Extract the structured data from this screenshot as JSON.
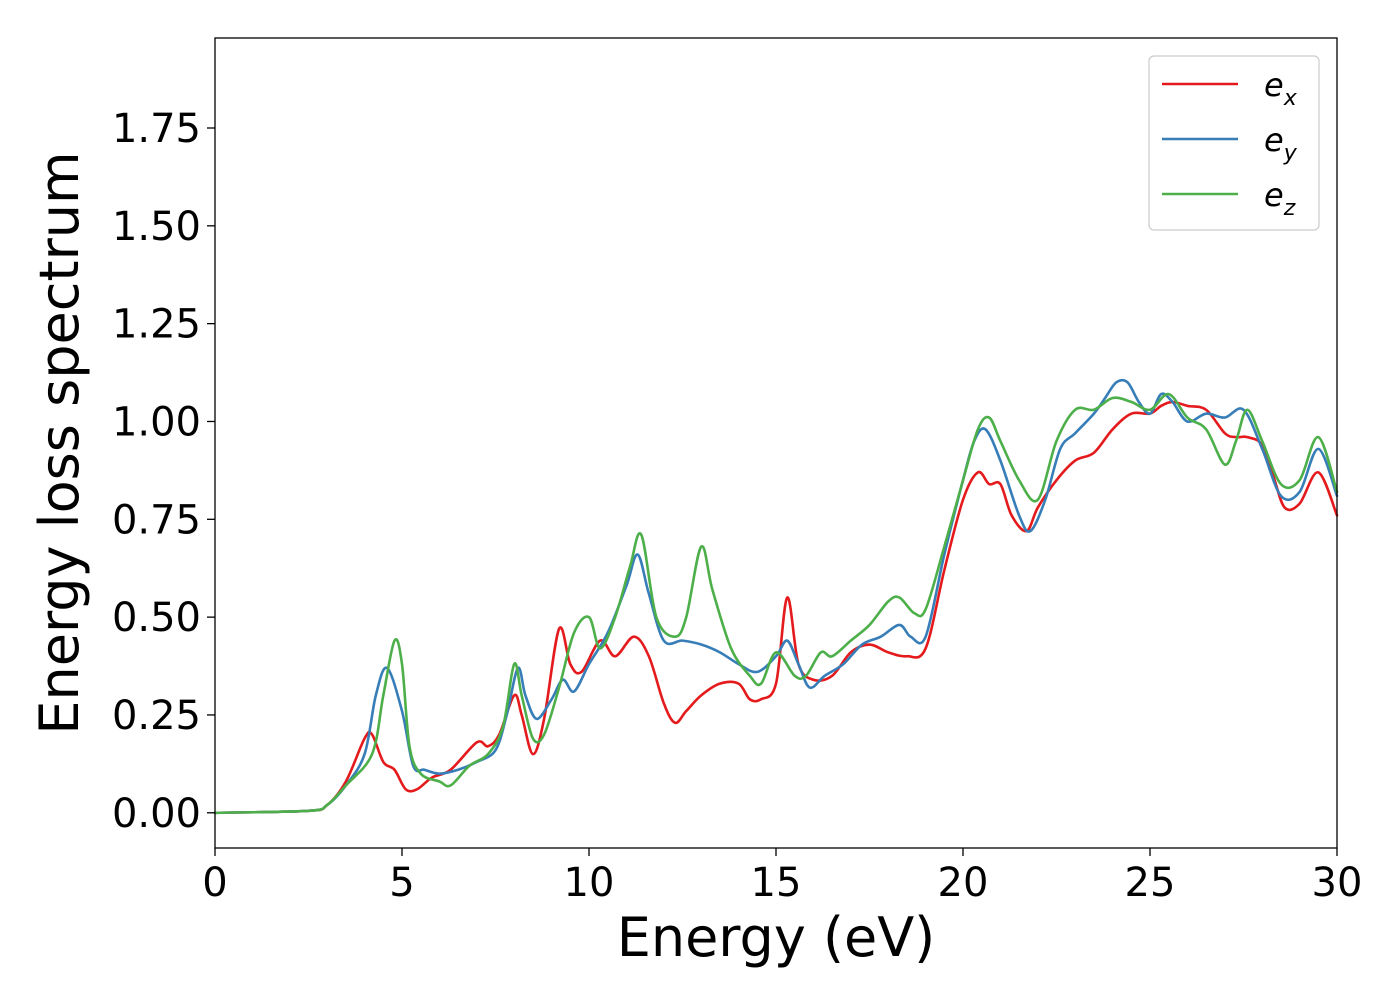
{
  "chart_data": {
    "type": "line",
    "xlabel": "Energy (eV)",
    "ylabel": "Energy loss spectrum",
    "xlim": [
      0,
      30
    ],
    "ylim": [
      -0.09,
      1.98
    ],
    "xticks": [
      "0",
      "5",
      "10",
      "15",
      "20",
      "25",
      "30"
    ],
    "yticks": [
      "0.00",
      "0.25",
      "0.50",
      "0.75",
      "1.00",
      "1.25",
      "1.50",
      "1.75"
    ],
    "grid": false,
    "legend_position": "top-right",
    "series": [
      {
        "name": "e_x",
        "label_main": "e",
        "label_sub": "x",
        "color": "#e41a1c",
        "x": [
          0,
          2.5,
          3,
          3.5,
          4.0,
          4.2,
          4.5,
          4.8,
          5.1,
          5.4,
          5.8,
          6.3,
          7.0,
          7.3,
          7.6,
          8.0,
          8.2,
          8.5,
          8.8,
          9.2,
          9.5,
          9.8,
          10.3,
          10.7,
          11.2,
          11.6,
          12.0,
          12.3,
          12.6,
          13.0,
          13.5,
          14.0,
          14.3,
          14.6,
          15.0,
          15.3,
          15.6,
          16.0,
          16.5,
          17.0,
          17.5,
          18.0,
          18.5,
          19.0,
          19.5,
          20.0,
          20.4,
          20.7,
          21.0,
          21.3,
          21.7,
          22.0,
          22.5,
          23.0,
          23.5,
          24.0,
          24.5,
          25.0,
          25.3,
          25.6,
          26.0,
          26.5,
          27.0,
          27.3,
          27.6,
          28.0,
          28.3,
          28.6,
          29.0,
          29.5,
          30.0
        ],
        "y": [
          0.0,
          0.005,
          0.02,
          0.08,
          0.19,
          0.2,
          0.13,
          0.11,
          0.06,
          0.06,
          0.09,
          0.11,
          0.18,
          0.17,
          0.2,
          0.3,
          0.25,
          0.15,
          0.24,
          0.47,
          0.38,
          0.36,
          0.44,
          0.4,
          0.45,
          0.4,
          0.28,
          0.23,
          0.26,
          0.3,
          0.33,
          0.33,
          0.29,
          0.29,
          0.33,
          0.55,
          0.38,
          0.34,
          0.35,
          0.41,
          0.43,
          0.41,
          0.4,
          0.42,
          0.62,
          0.8,
          0.87,
          0.84,
          0.84,
          0.76,
          0.72,
          0.78,
          0.85,
          0.9,
          0.92,
          0.98,
          1.02,
          1.02,
          1.04,
          1.05,
          1.04,
          1.03,
          0.97,
          0.96,
          0.96,
          0.94,
          0.86,
          0.78,
          0.79,
          0.87,
          0.76
        ]
      },
      {
        "name": "e_y",
        "label_main": "e",
        "label_sub": "y",
        "color": "#377eb8",
        "x": [
          0,
          2.5,
          3,
          3.5,
          4.0,
          4.3,
          4.6,
          5.0,
          5.3,
          5.6,
          6.0,
          6.5,
          7.0,
          7.5,
          7.8,
          8.1,
          8.3,
          8.6,
          9.0,
          9.3,
          9.6,
          10.0,
          10.5,
          11.0,
          11.3,
          11.6,
          12.0,
          12.5,
          13.0,
          13.5,
          14.0,
          14.5,
          15.0,
          15.3,
          15.6,
          15.9,
          16.3,
          16.8,
          17.3,
          17.8,
          18.3,
          18.6,
          19.0,
          19.5,
          20.0,
          20.3,
          20.6,
          21.0,
          21.5,
          21.8,
          22.2,
          22.6,
          23.0,
          23.5,
          23.8,
          24.1,
          24.4,
          24.7,
          25.0,
          25.3,
          25.6,
          26.0,
          26.5,
          27.0,
          27.5,
          28.0,
          28.5,
          29.0,
          29.5,
          30.0
        ],
        "y": [
          0.0,
          0.005,
          0.02,
          0.07,
          0.15,
          0.3,
          0.37,
          0.26,
          0.12,
          0.11,
          0.1,
          0.11,
          0.13,
          0.16,
          0.25,
          0.37,
          0.3,
          0.24,
          0.29,
          0.34,
          0.31,
          0.38,
          0.46,
          0.58,
          0.66,
          0.56,
          0.44,
          0.44,
          0.43,
          0.41,
          0.38,
          0.36,
          0.4,
          0.44,
          0.38,
          0.32,
          0.35,
          0.38,
          0.43,
          0.45,
          0.48,
          0.45,
          0.45,
          0.66,
          0.85,
          0.95,
          0.98,
          0.9,
          0.76,
          0.72,
          0.8,
          0.93,
          0.97,
          1.02,
          1.06,
          1.1,
          1.1,
          1.05,
          1.02,
          1.07,
          1.05,
          1.0,
          1.02,
          1.01,
          1.03,
          0.93,
          0.81,
          0.82,
          0.93,
          0.81
        ]
      },
      {
        "name": "e_z",
        "label_main": "e",
        "label_sub": "z",
        "color": "#4daf4a",
        "x": [
          0,
          2.5,
          3,
          3.5,
          4.2,
          4.5,
          4.8,
          5.0,
          5.2,
          5.5,
          6.0,
          6.3,
          6.8,
          7.3,
          7.7,
          8.0,
          8.2,
          8.5,
          8.8,
          9.2,
          9.6,
          10.0,
          10.3,
          10.7,
          11.1,
          11.4,
          11.8,
          12.3,
          12.6,
          13.0,
          13.3,
          13.8,
          14.3,
          14.6,
          15.0,
          15.5,
          15.8,
          16.2,
          16.5,
          17.0,
          17.5,
          18.0,
          18.3,
          18.7,
          19.0,
          19.5,
          20.0,
          20.4,
          20.7,
          21.0,
          21.5,
          22.0,
          22.5,
          23.0,
          23.5,
          24.0,
          24.5,
          25.0,
          25.5,
          26.0,
          26.5,
          27.0,
          27.3,
          27.6,
          28.0,
          28.5,
          29.0,
          29.5,
          30.0
        ],
        "y": [
          0.0,
          0.005,
          0.02,
          0.07,
          0.15,
          0.3,
          0.44,
          0.38,
          0.17,
          0.1,
          0.08,
          0.07,
          0.12,
          0.15,
          0.22,
          0.38,
          0.3,
          0.19,
          0.2,
          0.32,
          0.46,
          0.5,
          0.42,
          0.5,
          0.63,
          0.71,
          0.5,
          0.45,
          0.5,
          0.68,
          0.57,
          0.42,
          0.35,
          0.33,
          0.41,
          0.35,
          0.35,
          0.41,
          0.4,
          0.44,
          0.48,
          0.54,
          0.55,
          0.51,
          0.52,
          0.68,
          0.85,
          0.98,
          1.01,
          0.95,
          0.85,
          0.8,
          0.95,
          1.03,
          1.03,
          1.06,
          1.05,
          1.03,
          1.07,
          1.01,
          0.98,
          0.89,
          0.95,
          1.03,
          0.95,
          0.84,
          0.85,
          0.96,
          0.82
        ]
      }
    ]
  }
}
